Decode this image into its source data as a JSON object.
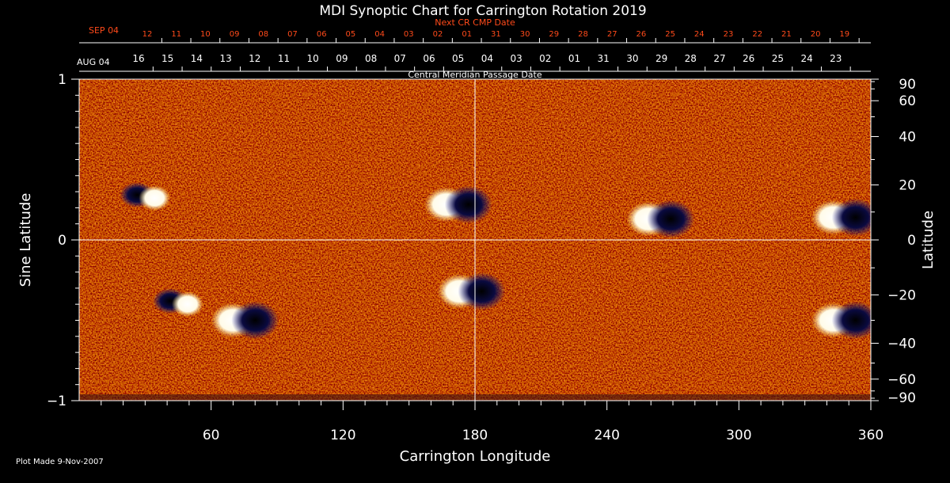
{
  "colors": {
    "background": "#000000",
    "axis": "#ffffff",
    "next_cr_text": "#ff4a1a",
    "field_base": "#c8320a"
  },
  "chart_data": {
    "type": "heatmap",
    "title": "MDI Synoptic Chart for Carrington Rotation 2019",
    "xlabel": "Carrington Longitude",
    "ylabel_left": "Sine Latitude",
    "ylabel_right": "Latitude",
    "top_axis_label": "Central Meridian Passage Date",
    "next_cr_label": "Next CR CMP Date",
    "xlim": [
      0,
      360
    ],
    "ylim": [
      -1,
      1
    ],
    "x_ticks": [
      60,
      120,
      180,
      240,
      300,
      360
    ],
    "x_tick_labels": [
      "60",
      "120",
      "180",
      "240",
      "300",
      "360"
    ],
    "x_minor_step": 10,
    "y_left_ticks": [
      -1,
      0,
      1
    ],
    "y_left_tick_labels": [
      "−1",
      "0",
      "1"
    ],
    "y_right_ticks": [
      90,
      60,
      40,
      20,
      0,
      -20,
      -40,
      -60,
      -90
    ],
    "y_right_tick_labels": [
      "90",
      "60",
      "40",
      "20",
      "0",
      "−20",
      "−40",
      "−60",
      "−90"
    ],
    "month_label_current": "AUG 04",
    "month_label_next": "SEP 04",
    "current_rotation_dates": [
      "16",
      "15",
      "14",
      "13",
      "12",
      "11",
      "10",
      "09",
      "08",
      "07",
      "06",
      "05",
      "04",
      "03",
      "02",
      "01",
      "31",
      "30",
      "29",
      "28",
      "27",
      "26",
      "25",
      "24",
      "23"
    ],
    "next_rotation_dates": [
      "12",
      "11",
      "10",
      "09",
      "08",
      "07",
      "06",
      "05",
      "04",
      "03",
      "02",
      "01",
      "31",
      "30",
      "29",
      "28",
      "27",
      "26",
      "25",
      "24",
      "23",
      "22",
      "21",
      "20",
      "19"
    ],
    "grid_lines": [
      {
        "axis": "x",
        "value": 180
      },
      {
        "axis": "y",
        "value": 0
      }
    ],
    "active_regions": [
      {
        "lon": 30,
        "sinlat": 0.28,
        "polarity": "mixed"
      },
      {
        "lon": 75,
        "sinlat": -0.5,
        "polarity": "bipolar"
      },
      {
        "lon": 45,
        "sinlat": -0.38,
        "polarity": "mixed"
      },
      {
        "lon": 172,
        "sinlat": 0.22,
        "polarity": "bipolar"
      },
      {
        "lon": 178,
        "sinlat": -0.32,
        "polarity": "bipolar"
      },
      {
        "lon": 264,
        "sinlat": 0.13,
        "polarity": "bipolar"
      },
      {
        "lon": 348,
        "sinlat": 0.14,
        "polarity": "bipolar"
      },
      {
        "lon": 348,
        "sinlat": -0.5,
        "polarity": "bipolar"
      }
    ]
  },
  "footer": {
    "plot_made": "Plot Made  9-Nov-2007"
  }
}
